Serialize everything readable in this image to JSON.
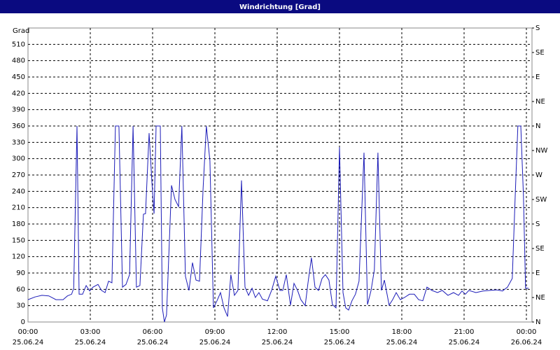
{
  "chart_data": {
    "type": "line",
    "title": "Windrichtung [Grad]",
    "ylabel": "Grad",
    "x": [
      0,
      0.34,
      0.67,
      1.0,
      1.35,
      1.69,
      1.9,
      2.1,
      2.2,
      2.36,
      2.46,
      2.63,
      2.8,
      2.97,
      3.13,
      3.37,
      3.54,
      3.71,
      3.88,
      4.04,
      4.21,
      4.38,
      4.55,
      4.72,
      4.89,
      5.06,
      5.22,
      5.39,
      5.56,
      5.66,
      5.83,
      5.97,
      6.07,
      6.17,
      6.27,
      6.37,
      6.47,
      6.57,
      6.67,
      6.91,
      7.08,
      7.25,
      7.41,
      7.58,
      7.75,
      7.92,
      8.09,
      8.26,
      8.43,
      8.59,
      8.76,
      8.93,
      9.1,
      9.27,
      9.44,
      9.61,
      9.77,
      9.94,
      10.11,
      10.28,
      10.45,
      10.62,
      10.79,
      10.95,
      11.12,
      11.29,
      11.53,
      11.73,
      11.93,
      12.13,
      12.27,
      12.44,
      12.64,
      12.81,
      12.98,
      13.14,
      13.35,
      13.48,
      13.65,
      13.82,
      13.99,
      14.16,
      14.32,
      14.49,
      14.66,
      14.83,
      15.0,
      15.17,
      15.3,
      15.44,
      15.6,
      15.77,
      15.94,
      16.18,
      16.35,
      16.52,
      16.68,
      16.85,
      17.02,
      17.16,
      17.39,
      17.56,
      17.73,
      17.93,
      18.13,
      18.37,
      18.6,
      18.81,
      19.01,
      19.21,
      19.45,
      19.72,
      19.95,
      20.22,
      20.49,
      20.73,
      20.9,
      21.06,
      21.23,
      21.57,
      21.91,
      22.24,
      22.58,
      22.85,
      23.09,
      23.32,
      23.46,
      23.59,
      23.73,
      23.86,
      23.96,
      24.1
    ],
    "series": [
      {
        "name": "Windrichtung",
        "color": "#1c1cb8",
        "values": [
          41,
          46,
          49,
          48,
          41,
          41,
          48,
          51,
          62,
          360,
          51,
          51,
          67,
          57,
          64,
          69,
          58,
          54,
          75,
          72,
          360,
          360,
          64,
          69,
          87,
          360,
          64,
          67,
          198,
          199,
          347,
          255,
          199,
          360,
          360,
          360,
          26,
          0,
          13,
          251,
          225,
          212,
          360,
          84,
          58,
          109,
          77,
          75,
          244,
          360,
          296,
          26,
          39,
          54,
          26,
          10,
          87,
          49,
          58,
          260,
          64,
          49,
          62,
          45,
          54,
          42,
          39,
          58,
          84,
          58,
          58,
          87,
          31,
          71,
          58,
          41,
          30,
          71,
          118,
          64,
          58,
          80,
          87,
          77,
          32,
          26,
          321,
          54,
          26,
          22,
          39,
          51,
          75,
          311,
          32,
          58,
          96,
          311,
          58,
          77,
          31,
          41,
          54,
          41,
          45,
          51,
          51,
          41,
          39,
          64,
          58,
          54,
          58,
          49,
          54,
          49,
          57,
          51,
          58,
          54,
          57,
          58,
          59,
          57,
          64,
          80,
          231,
          360,
          360,
          231,
          62,
          62
        ]
      }
    ],
    "xlim": [
      0,
      24.27
    ],
    "ylim": [
      0,
      540
    ],
    "y2lim": [
      0,
      540
    ],
    "grid": true,
    "xticks": [
      {
        "value": 0,
        "label": "00:00"
      },
      {
        "value": 3,
        "label": "03:00"
      },
      {
        "value": 6,
        "label": "06:00"
      },
      {
        "value": 9,
        "label": "09:00"
      },
      {
        "value": 12,
        "label": "12:00"
      },
      {
        "value": 15,
        "label": "15:00"
      },
      {
        "value": 18,
        "label": "18:00"
      },
      {
        "value": 21,
        "label": "21:00"
      },
      {
        "value": 24,
        "label": "00:00"
      }
    ],
    "xtick_dates": [
      "25.06.24",
      "25.06.24",
      "25.06.24",
      "25.06.24",
      "25.06.24",
      "25.06.24",
      "25.06.24",
      "25.06.24",
      "26.06.24"
    ],
    "yticks": [
      0,
      30,
      60,
      90,
      120,
      150,
      180,
      210,
      240,
      270,
      300,
      330,
      360,
      390,
      420,
      450,
      480,
      510
    ],
    "y2ticks": [
      {
        "value": 0,
        "label": "N"
      },
      {
        "value": 45,
        "label": "NE"
      },
      {
        "value": 90,
        "label": "E"
      },
      {
        "value": 135,
        "label": "SE"
      },
      {
        "value": 180,
        "label": "S"
      },
      {
        "value": 225,
        "label": "SW"
      },
      {
        "value": 270,
        "label": "W"
      },
      {
        "value": 315,
        "label": "NW"
      },
      {
        "value": 360,
        "label": "N"
      },
      {
        "value": 405,
        "label": "NE"
      },
      {
        "value": 450,
        "label": "E"
      },
      {
        "value": 495,
        "label": "SE"
      },
      {
        "value": 540,
        "label": "S"
      }
    ]
  }
}
